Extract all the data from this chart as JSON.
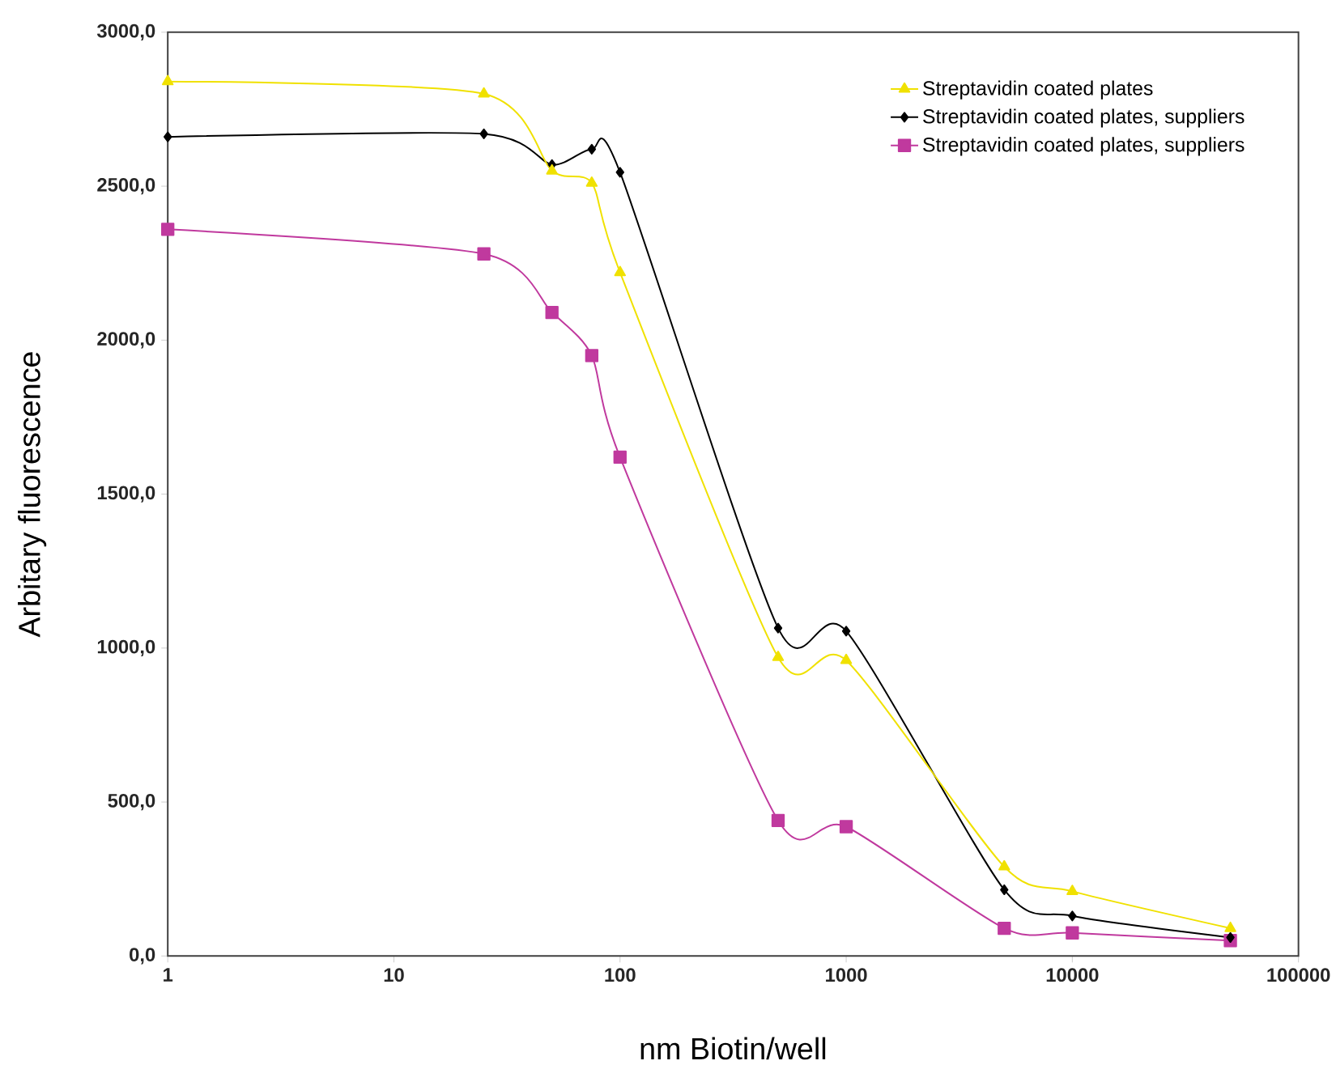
{
  "chart_data": {
    "type": "line",
    "xlabel": "nm Biotin/well",
    "ylabel": "Arbitary fluorescence",
    "x": [
      1,
      25,
      50,
      75,
      100,
      500,
      1000,
      5000,
      10000,
      50000
    ],
    "series": [
      {
        "name": "Streptavidin coated plates",
        "color": "#f0e100",
        "marker": "triangle",
        "values": [
          2840,
          2800,
          2550,
          2510,
          2220,
          970,
          960,
          290,
          210,
          90
        ]
      },
      {
        "name": "Streptavidin coated plates, suppliers",
        "color": "#000000",
        "marker": "diamond",
        "values": [
          2660,
          2670,
          2570,
          2620,
          2545,
          1065,
          1055,
          215,
          130,
          60
        ]
      },
      {
        "name": "Streptavidin coated plates, suppliers",
        "color": "#c0399e",
        "marker": "square",
        "values": [
          2360,
          2280,
          2090,
          1950,
          1620,
          440,
          420,
          90,
          75,
          50
        ]
      }
    ],
    "log": "x",
    "xlim": [
      1,
      100000
    ],
    "ylim": [
      0,
      3000
    ],
    "xticks": [
      1,
      10,
      100,
      1000,
      10000,
      100000
    ],
    "yticks": [
      {
        "value": 0,
        "label": "0,0"
      },
      {
        "value": 500,
        "label": "500,0"
      },
      {
        "value": 1000,
        "label": "1000,0"
      },
      {
        "value": 1500,
        "label": "1500,0"
      },
      {
        "value": 2000,
        "label": "2000,0"
      },
      {
        "value": 2500,
        "label": "2500,0"
      },
      {
        "value": 3000,
        "label": "3000,0"
      }
    ],
    "legend": "top right"
  }
}
